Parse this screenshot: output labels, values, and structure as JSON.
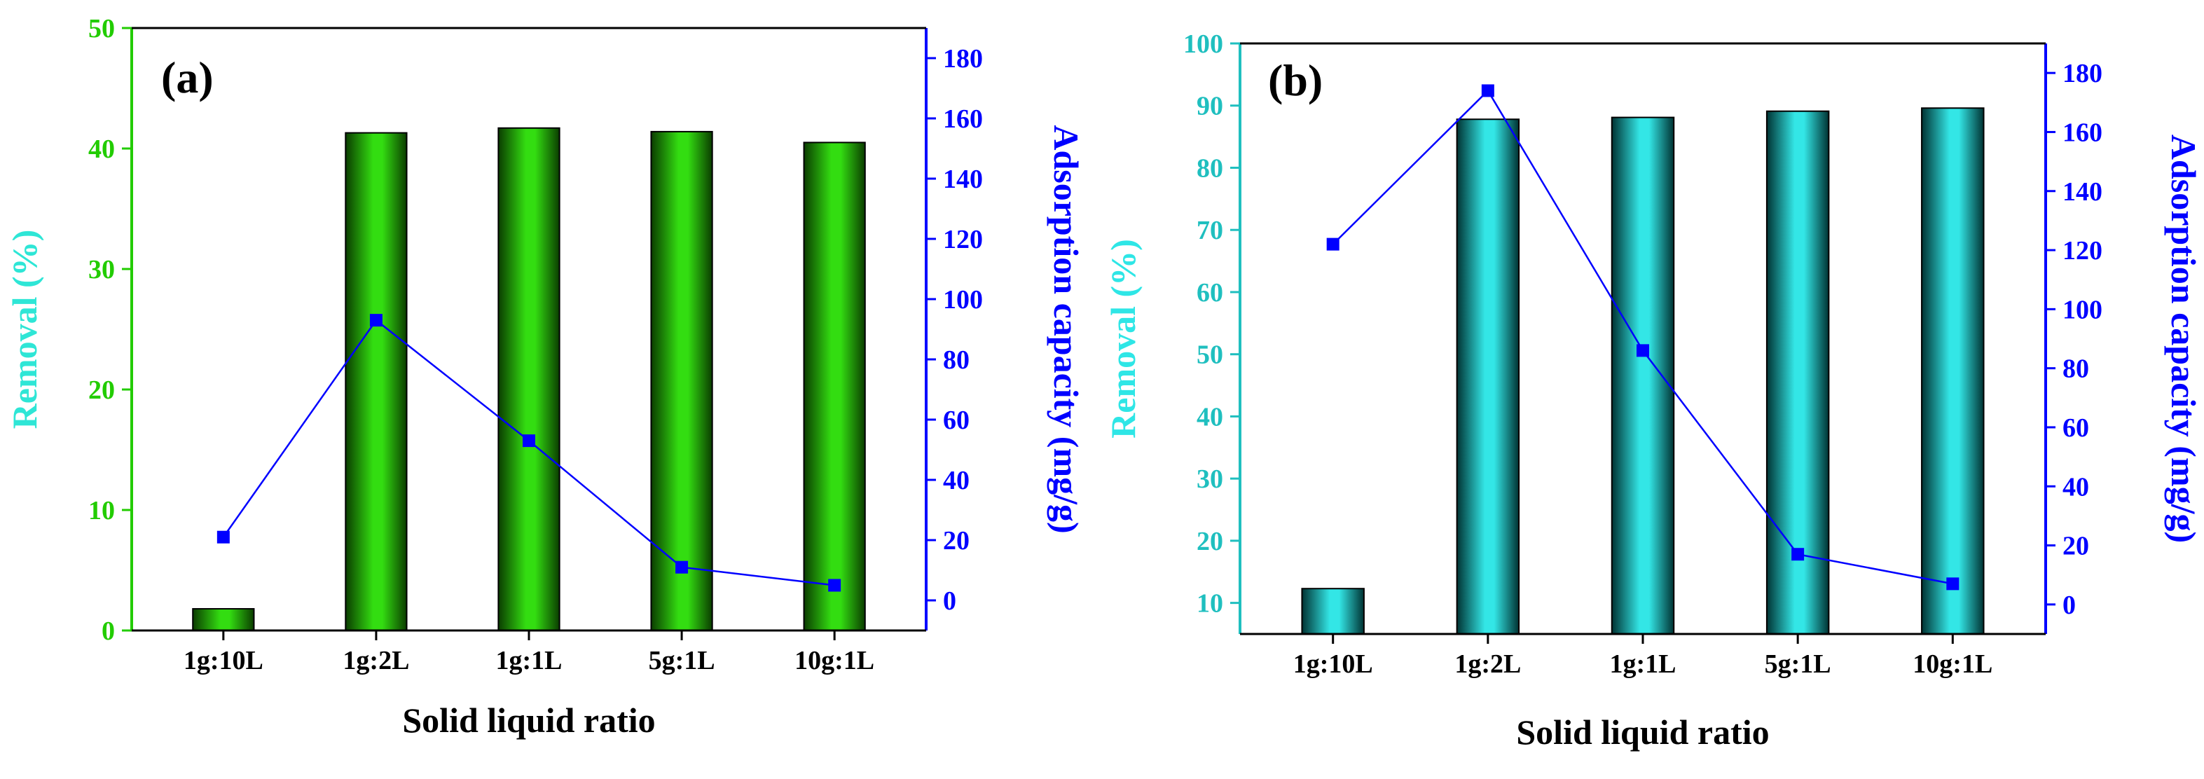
{
  "chart_data": [
    {
      "id": "a",
      "type": "bar+line",
      "panel_label": "(a)",
      "categories": [
        "1g:10L",
        "1g:2L",
        "1g:1L",
        "5g:1L",
        "10g:1L"
      ],
      "series": [
        {
          "name": "Removal (%)",
          "axis": "left",
          "kind": "bar",
          "values": [
            1.8,
            41.3,
            41.7,
            41.4,
            40.5
          ]
        },
        {
          "name": "Adsorption capacity (mg/g)",
          "axis": "right",
          "kind": "line",
          "values": [
            21,
            93,
            53,
            11,
            5
          ]
        }
      ],
      "xlabel": "Solid liquid ratio",
      "ylabel_left": "Removal (%)",
      "ylabel_right": "Adsorption capacity (mg/g)",
      "ylim_left": [
        0,
        50
      ],
      "ylim_right": [
        -10,
        190
      ],
      "yticks_left": [
        "0",
        "10",
        "20",
        "30",
        "40",
        "50"
      ],
      "yticks_right": [
        "0",
        "20",
        "40",
        "60",
        "80",
        "100",
        "120",
        "140",
        "160",
        "180"
      ],
      "colors": {
        "left_axis": "#22cc00",
        "left_title": "#2ee6d6",
        "right": "#0000ff",
        "bar_dark": "#0b3d00",
        "bar_light": "#33dd11"
      }
    },
    {
      "id": "b",
      "type": "bar+line",
      "panel_label": "(b)",
      "categories": [
        "1g:10L",
        "1g:2L",
        "1g:1L",
        "5g:1L",
        "10g:1L"
      ],
      "series": [
        {
          "name": "Removal (%)",
          "axis": "left",
          "kind": "bar",
          "values": [
            12.3,
            87.8,
            88.1,
            89.1,
            89.6
          ]
        },
        {
          "name": "Adsorption capacity (mg/g)",
          "axis": "right",
          "kind": "line",
          "values": [
            122,
            174,
            86,
            17,
            7
          ]
        }
      ],
      "xlabel": "Solid liquid ratio",
      "ylabel_left": "Removal (%)",
      "ylabel_right": "Adsorption capacity (mg/g)",
      "ylim_left": [
        5,
        100
      ],
      "ylim_right": [
        -10,
        190
      ],
      "yticks_left": [
        "10",
        "20",
        "30",
        "40",
        "50",
        "60",
        "70",
        "80",
        "90",
        "100"
      ],
      "yticks_right": [
        "0",
        "20",
        "40",
        "60",
        "80",
        "100",
        "120",
        "140",
        "160",
        "180"
      ],
      "colors": {
        "left_axis": "#1fbfbf",
        "left_title": "#2ee6e6",
        "right": "#0000ff",
        "bar_dark": "#003333",
        "bar_light": "#33e6e6"
      }
    }
  ]
}
